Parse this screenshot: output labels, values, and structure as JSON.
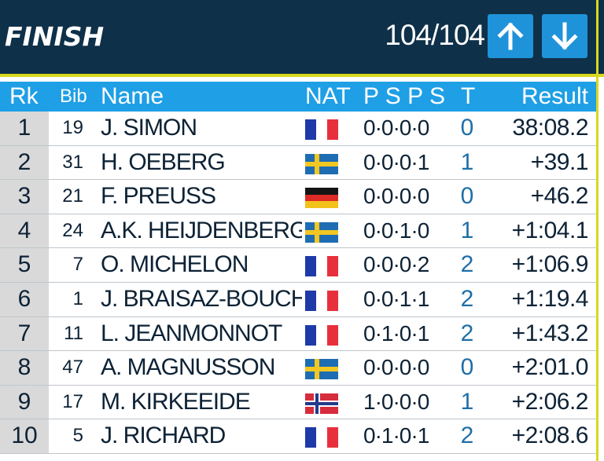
{
  "header": {
    "title": "FINISH",
    "counter": "104/104",
    "up_icon": "arrow-up-icon",
    "down_icon": "arrow-down-icon"
  },
  "columns": {
    "rank": "Rk",
    "bib": "Bib",
    "name": "Name",
    "nat": "NAT",
    "shooting": "P S P S",
    "t": "T",
    "result": "Result"
  },
  "colors": {
    "header_bg": "#0f3049",
    "accent": "#d8d81e",
    "table_header": "#1f9fe5",
    "button": "#1f93d9"
  },
  "rows": [
    {
      "rank": "1",
      "bib": "19",
      "name": "J. SIMON",
      "nat": "FRA",
      "shooting": "0·0·0·0",
      "t": "0",
      "result": "38:08.2"
    },
    {
      "rank": "2",
      "bib": "31",
      "name": "H. OEBERG",
      "nat": "SWE",
      "shooting": "0·0·0·1",
      "t": "1",
      "result": "+39.1"
    },
    {
      "rank": "3",
      "bib": "21",
      "name": "F. PREUSS",
      "nat": "GER",
      "shooting": "0·0·0·0",
      "t": "0",
      "result": "+46.2"
    },
    {
      "rank": "4",
      "bib": "24",
      "name": "A.K. HEIJDENBERG",
      "nat": "SWE",
      "shooting": "0·0·1·0",
      "t": "1",
      "result": "+1:04.1"
    },
    {
      "rank": "5",
      "bib": "7",
      "name": "O. MICHELON",
      "nat": "FRA",
      "shooting": "0·0·0·2",
      "t": "2",
      "result": "+1:06.9"
    },
    {
      "rank": "6",
      "bib": "1",
      "name": "J. BRAISAZ-BOUCHET",
      "nat": "FRA",
      "shooting": "0·0·1·1",
      "t": "2",
      "result": "+1:19.4"
    },
    {
      "rank": "7",
      "bib": "11",
      "name": "L. JEANMONNOT",
      "nat": "FRA",
      "shooting": "0·1·0·1",
      "t": "2",
      "result": "+1:43.2"
    },
    {
      "rank": "8",
      "bib": "47",
      "name": "A. MAGNUSSON",
      "nat": "SWE",
      "shooting": "0·0·0·0",
      "t": "0",
      "result": "+2:01.0"
    },
    {
      "rank": "9",
      "bib": "17",
      "name": "M. KIRKEEIDE",
      "nat": "NOR",
      "shooting": "1·0·0·0",
      "t": "1",
      "result": "+2:06.2"
    },
    {
      "rank": "10",
      "bib": "5",
      "name": "J. RICHARD",
      "nat": "FRA",
      "shooting": "0·1·0·1",
      "t": "2",
      "result": "+2:08.6"
    }
  ]
}
